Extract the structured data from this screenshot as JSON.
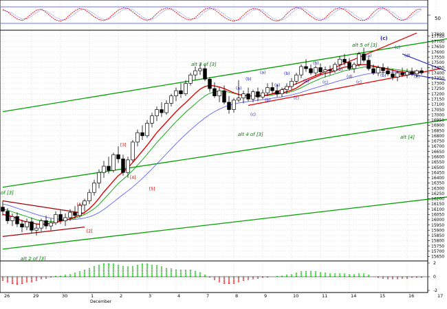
{
  "colors": {
    "up_candle": "#ffffff",
    "down_candle": "#000000",
    "channel_green": "#00a000",
    "trend_red": "#e00000",
    "wedge_red": "#a00000",
    "ma_short": "#e00000",
    "ma_mid": "#00a000",
    "ma_long": "#6060ff",
    "annotation_green": "#008000",
    "wave_blue": "#1a1ab0",
    "wave_red": "#d00000",
    "oscillator_red": "#d00000",
    "oscillator_blue": "#4040ff",
    "hist_green": "#00b000",
    "hist_red": "#e00000",
    "grid": "#c8c8c8"
  },
  "annotations": {
    "alt3": "alt 3 of [3]",
    "alt4": "alt 4 of [3]",
    "alt5": "alt 5 of [3]",
    "alt2": "alt 2 of [3]",
    "altbr4": "alt [4]",
    "of3": "of [3]",
    "wc_top": "(c)"
  },
  "oscillator": {
    "label": "50"
  },
  "macd": {
    "tick_labels": [
      "2",
      "0",
      "-2"
    ]
  },
  "chart_data": {
    "type": "candlestick",
    "title": "",
    "y_ticks": [
      17750,
      17700,
      17650,
      17600,
      17550,
      17500,
      17450,
      17400,
      17350,
      17300,
      17250,
      17200,
      17150,
      17100,
      17050,
      17000,
      16950,
      16900,
      16850,
      16800,
      16750,
      16700,
      16650,
      16600,
      16550,
      16500,
      16450,
      16400,
      16350,
      16300,
      16250,
      16200,
      16150,
      16100,
      16050,
      16000,
      15950,
      15900,
      15850,
      15800,
      15750,
      15700,
      15650
    ],
    "y_top_label": "17800",
    "ylim": [
      15620,
      17800
    ],
    "x_labels": [
      {
        "label": "26",
        "x": 0
      },
      {
        "label": "29",
        "x": 6
      },
      {
        "label": "30",
        "x": 12
      },
      {
        "label": "1",
        "x": 18
      },
      {
        "label": "December",
        "x": 18
      },
      {
        "label": "2",
        "x": 24
      },
      {
        "label": "3",
        "x": 30
      },
      {
        "label": "4",
        "x": 36
      },
      {
        "label": "7",
        "x": 42
      },
      {
        "label": "8",
        "x": 48
      },
      {
        "label": "9",
        "x": 54
      },
      {
        "label": "10",
        "x": 60
      },
      {
        "label": "11",
        "x": 66
      },
      {
        "label": "14",
        "x": 72
      },
      {
        "label": "15",
        "x": 78
      },
      {
        "label": "16",
        "x": 84
      },
      {
        "label": "17",
        "x": 90
      }
    ],
    "candles": [
      [
        16120,
        16180,
        16040,
        16080
      ],
      [
        16080,
        16110,
        15960,
        15990
      ],
      [
        15990,
        16060,
        15940,
        16030
      ],
      [
        16030,
        16070,
        15930,
        15960
      ],
      [
        15960,
        16000,
        15880,
        15930
      ],
      [
        15930,
        16010,
        15900,
        15980
      ],
      [
        15980,
        16020,
        15870,
        15900
      ],
      [
        15900,
        15960,
        15850,
        15920
      ],
      [
        15920,
        16010,
        15890,
        15990
      ],
      [
        15990,
        16040,
        15910,
        15940
      ],
      [
        15940,
        16010,
        15900,
        15970
      ],
      [
        15970,
        16080,
        15950,
        16050
      ],
      [
        16050,
        16090,
        15960,
        15990
      ],
      [
        15990,
        16060,
        15940,
        16020
      ],
      [
        16020,
        16100,
        15990,
        16070
      ],
      [
        16070,
        16130,
        16010,
        16040
      ],
      [
        16040,
        16160,
        16020,
        16140
      ],
      [
        16140,
        16200,
        16080,
        16180
      ],
      [
        16180,
        16290,
        16150,
        16260
      ],
      [
        16260,
        16380,
        16230,
        16350
      ],
      [
        16350,
        16480,
        16300,
        16450
      ],
      [
        16450,
        16560,
        16400,
        16510
      ],
      [
        16510,
        16600,
        16440,
        16470
      ],
      [
        16470,
        16640,
        16450,
        16620
      ],
      [
        16620,
        16700,
        16540,
        16580
      ],
      [
        16580,
        16620,
        16420,
        16450
      ],
      [
        16450,
        16600,
        16400,
        16570
      ],
      [
        16570,
        16760,
        16550,
        16740
      ],
      [
        16740,
        16860,
        16700,
        16830
      ],
      [
        16830,
        16900,
        16760,
        16800
      ],
      [
        16800,
        16950,
        16780,
        16920
      ],
      [
        16920,
        17020,
        16880,
        16990
      ],
      [
        16990,
        17080,
        16940,
        17050
      ],
      [
        17050,
        17120,
        16980,
        17020
      ],
      [
        17020,
        17140,
        17000,
        17110
      ],
      [
        17110,
        17200,
        17080,
        17180
      ],
      [
        17180,
        17260,
        17130,
        17230
      ],
      [
        17230,
        17300,
        17160,
        17200
      ],
      [
        17200,
        17330,
        17180,
        17300
      ],
      [
        17300,
        17400,
        17280,
        17380
      ],
      [
        17380,
        17460,
        17330,
        17420
      ],
      [
        17420,
        17490,
        17380,
        17440
      ],
      [
        17440,
        17480,
        17320,
        17340
      ],
      [
        17340,
        17360,
        17220,
        17250
      ],
      [
        17250,
        17310,
        17160,
        17180
      ],
      [
        17180,
        17260,
        17120,
        17230
      ],
      [
        17230,
        17280,
        17100,
        17120
      ],
      [
        17120,
        17180,
        17010,
        17050
      ],
      [
        17050,
        17160,
        17020,
        17140
      ],
      [
        17140,
        17330,
        17120,
        17160
      ],
      [
        17160,
        17230,
        17110,
        17200
      ],
      [
        17200,
        17260,
        17130,
        17150
      ],
      [
        17150,
        17240,
        17120,
        17220
      ],
      [
        17220,
        17260,
        17130,
        17170
      ],
      [
        17170,
        17240,
        17150,
        17210
      ],
      [
        17210,
        17300,
        17180,
        17260
      ],
      [
        17260,
        17310,
        17200,
        17230
      ],
      [
        17230,
        17290,
        17170,
        17200
      ],
      [
        17200,
        17260,
        17170,
        17240
      ],
      [
        17240,
        17300,
        17200,
        17270
      ],
      [
        17270,
        17350,
        17240,
        17320
      ],
      [
        17320,
        17400,
        17290,
        17380
      ],
      [
        17380,
        17480,
        17350,
        17460
      ],
      [
        17460,
        17530,
        17410,
        17440
      ],
      [
        17440,
        17480,
        17380,
        17400
      ],
      [
        17400,
        17470,
        17370,
        17450
      ],
      [
        17450,
        17490,
        17380,
        17410
      ],
      [
        17410,
        17460,
        17360,
        17430
      ],
      [
        17430,
        17470,
        17380,
        17420
      ],
      [
        17420,
        17500,
        17400,
        17480
      ],
      [
        17480,
        17560,
        17450,
        17530
      ],
      [
        17530,
        17580,
        17470,
        17500
      ],
      [
        17500,
        17540,
        17420,
        17440
      ],
      [
        17440,
        17500,
        17400,
        17480
      ],
      [
        17480,
        17600,
        17460,
        17580
      ],
      [
        17580,
        17640,
        17500,
        17520
      ],
      [
        17520,
        17550,
        17420,
        17440
      ],
      [
        17440,
        17480,
        17380,
        17400
      ],
      [
        17400,
        17470,
        17370,
        17450
      ],
      [
        17450,
        17490,
        17390,
        17420
      ],
      [
        17420,
        17460,
        17370,
        17390
      ],
      [
        17390,
        17440,
        17330,
        17360
      ],
      [
        17360,
        17420,
        17320,
        17400
      ],
      [
        17400,
        17450,
        17360,
        17380
      ],
      [
        17380,
        17440,
        17350,
        17410
      ],
      [
        17410,
        17450,
        17370,
        17390
      ],
      [
        17390,
        17430,
        17360,
        17420
      ],
      [
        17420,
        17450,
        17380,
        17400
      ]
    ],
    "ma_short": [
      16050,
      16040,
      16030,
      16010,
      15990,
      15980,
      15970,
      15960,
      15955,
      15960,
      15965,
      15975,
      15985,
      15995,
      16010,
      16025,
      16045,
      16070,
      16105,
      16150,
      16205,
      16265,
      16315,
      16370,
      16420,
      16455,
      16495,
      16545,
      16600,
      16655,
      16710,
      16770,
      16830,
      16880,
      16930,
      16980,
      17030,
      17075,
      17115,
      17160,
      17205,
      17245,
      17270,
      17280,
      17275,
      17265,
      17250,
      17230,
      17210,
      17195,
      17185,
      17180,
      17180,
      17180,
      17185,
      17190,
      17200,
      17205,
      17210,
      17220,
      17235,
      17255,
      17285,
      17315,
      17340,
      17360,
      17380,
      17395,
      17405,
      17420,
      17440,
      17455,
      17460,
      17465,
      17475,
      17480,
      17475,
      17465,
      17455,
      17445,
      17435,
      17425,
      17415,
      17410,
      17405,
      17405,
      17405,
      17405
    ],
    "ma_mid": [
      16100,
      16090,
      16075,
      16060,
      16045,
      16030,
      16015,
      16000,
      15990,
      15985,
      15982,
      15985,
      15990,
      15995,
      16005,
      16015,
      16030,
      16050,
      16075,
      16105,
      16145,
      16195,
      16245,
      16295,
      16345,
      16385,
      16425,
      16470,
      16520,
      16570,
      16625,
      16680,
      16735,
      16785,
      16835,
      16885,
      16935,
      16980,
      17025,
      17065,
      17105,
      17145,
      17180,
      17205,
      17220,
      17225,
      17225,
      17215,
      17205,
      17195,
      17185,
      17180,
      17178,
      17178,
      17180,
      17183,
      17190,
      17196,
      17202,
      17210,
      17222,
      17238,
      17258,
      17282,
      17305,
      17325,
      17345,
      17362,
      17376,
      17390,
      17405,
      17420,
      17430,
      17438,
      17446,
      17455,
      17458,
      17456,
      17452,
      17448,
      17442,
      17436,
      17430,
      17425,
      17420,
      17418,
      17416,
      17414
    ],
    "ma_long": [
      16150,
      16140,
      16125,
      16110,
      16095,
      16080,
      16065,
      16050,
      16035,
      16025,
      16015,
      16008,
      16003,
      16000,
      16000,
      16003,
      16008,
      16016,
      16028,
      16045,
      16068,
      16098,
      16132,
      16168,
      16205,
      16240,
      16275,
      16312,
      16352,
      16394,
      16438,
      16484,
      16532,
      16580,
      16628,
      16676,
      16724,
      16770,
      16814,
      16856,
      16896,
      16934,
      16970,
      17002,
      17030,
      17054,
      17074,
      17090,
      17102,
      17112,
      17120,
      17127,
      17133,
      17139,
      17145,
      17151,
      17158,
      17165,
      17172,
      17180,
      17190,
      17201,
      17214,
      17229,
      17244,
      17258,
      17272,
      17286,
      17299,
      17312,
      17325,
      17338,
      17350,
      17361,
      17372,
      17383,
      17391,
      17397,
      17401,
      17404,
      17406,
      17407,
      17407,
      17406,
      17405,
      17404,
      17403,
      17402
    ],
    "oscillator_red": [
      70,
      62,
      48,
      36,
      30,
      40,
      55,
      68,
      72,
      60,
      45,
      32,
      28,
      35,
      52,
      66,
      74,
      70,
      58,
      44,
      34,
      30,
      38,
      54,
      68,
      76,
      74,
      62,
      48,
      36,
      30,
      38,
      56,
      70,
      76,
      72,
      60,
      46,
      36,
      32,
      40,
      58,
      72,
      76,
      70,
      56,
      42,
      32,
      28,
      34,
      50,
      66,
      74,
      72,
      60,
      44,
      32,
      28,
      36,
      54,
      70,
      78,
      74,
      60,
      46,
      34,
      30,
      40,
      58,
      72,
      76,
      70,
      56,
      42,
      32,
      30,
      40,
      60,
      74,
      76,
      66,
      50,
      36,
      30,
      38,
      56,
      70,
      72
    ],
    "oscillator_blue": [
      66,
      64,
      56,
      44,
      36,
      36,
      46,
      60,
      68,
      66,
      54,
      42,
      34,
      32,
      42,
      56,
      68,
      72,
      66,
      54,
      42,
      34,
      34,
      44,
      58,
      70,
      74,
      70,
      58,
      44,
      34,
      34,
      44,
      60,
      70,
      74,
      68,
      56,
      44,
      36,
      36,
      46,
      62,
      72,
      74,
      66,
      52,
      40,
      32,
      30,
      40,
      56,
      68,
      72,
      68,
      54,
      40,
      32,
      32,
      42,
      58,
      72,
      76,
      70,
      56,
      42,
      34,
      34,
      46,
      62,
      72,
      74,
      66,
      52,
      40,
      32,
      34,
      46,
      64,
      74,
      72,
      60,
      46,
      34,
      34,
      44,
      60,
      68
    ],
    "macd_hist": [
      -0.6,
      -0.9,
      -1.1,
      -1.2,
      -1.1,
      -0.9,
      -0.8,
      -0.6,
      -0.4,
      -0.3,
      -0.1,
      0.1,
      0.2,
      0.3,
      0.4,
      0.6,
      0.8,
      1.0,
      1.3,
      1.6,
      1.8,
      2.0,
      2.0,
      1.9,
      1.8,
      1.6,
      1.5,
      1.6,
      1.8,
      1.9,
      1.9,
      1.8,
      1.7,
      1.5,
      1.3,
      1.2,
      1.1,
      1.0,
      1.0,
      1.0,
      0.9,
      0.7,
      0.3,
      -0.1,
      -0.5,
      -0.8,
      -1.0,
      -1.1,
      -1.0,
      -0.8,
      -0.6,
      -0.5,
      -0.4,
      -0.3,
      -0.2,
      -0.1,
      0.0,
      0.1,
      0.2,
      0.3,
      0.4,
      0.6,
      0.8,
      0.9,
      0.9,
      0.8,
      0.7,
      0.6,
      0.5,
      0.5,
      0.5,
      0.5,
      0.4,
      0.4,
      0.5,
      0.5,
      0.3,
      0.0,
      -0.2,
      -0.3,
      -0.4,
      -0.4,
      -0.4,
      -0.3,
      -0.3,
      -0.2,
      -0.2,
      -0.2
    ],
    "lines": [
      {
        "name": "",
        "color": "#00a000",
        "from": [
          0,
          17030
        ],
        "to": [
          93,
          17730
        ]
      },
      {
        "name": "",
        "color": "#00a000",
        "from": [
          0,
          16310
        ],
        "to": [
          93,
          16960
        ]
      },
      {
        "name": "",
        "color": "#00a000",
        "from": [
          0,
          15720
        ],
        "to": [
          93,
          16220
        ]
      },
      {
        "name": "",
        "color": "#e00000",
        "from": [
          56,
          17200
        ],
        "to": [
          86,
          17780
        ]
      },
      {
        "name": "",
        "color": "#e00000",
        "from": [
          51,
          17090
        ],
        "to": [
          91,
          17440
        ]
      },
      {
        "name": "",
        "color": "#a00000",
        "from": [
          0,
          16180
        ],
        "to": [
          17,
          16060
        ]
      },
      {
        "name": "",
        "color": "#a00000",
        "from": [
          0,
          15840
        ],
        "to": [
          17,
          15930
        ]
      },
      {
        "name": "",
        "color": "#4040c0",
        "from": [
          83,
          17580
        ],
        "to": [
          92,
          17420
        ]
      },
      {
        "name": "",
        "color": "#4040c0",
        "from": [
          83,
          17400
        ],
        "to": [
          92,
          17330
        ]
      }
    ],
    "wave_labels": [
      {
        "text": "(a)",
        "x": 49,
        "y": 17240,
        "color": "#1a1ab0"
      },
      {
        "text": "(b)",
        "x": 51,
        "y": 17330,
        "color": "#1a1ab0"
      },
      {
        "text": "(c)",
        "x": 52,
        "y": 16990,
        "color": "#1a1ab0"
      },
      {
        "text": "(a)",
        "x": 54,
        "y": 17390,
        "color": "#1a1ab0"
      },
      {
        "text": "(b)",
        "x": 55,
        "y": 17130,
        "color": "#1a1ab0"
      },
      {
        "text": "(a)",
        "x": 57,
        "y": 17270,
        "color": "#1a1ab0"
      },
      {
        "text": "(b)",
        "x": 59,
        "y": 17380,
        "color": "#1a1ab0"
      },
      {
        "text": "(c)",
        "x": 61,
        "y": 17150,
        "color": "#1a1ab0"
      },
      {
        "text": "(a)",
        "x": 63,
        "y": 17310,
        "color": "#1a1ab0"
      },
      {
        "text": "(b)",
        "x": 65,
        "y": 17480,
        "color": "#1a1ab0"
      },
      {
        "text": "(c)",
        "x": 67,
        "y": 17300,
        "color": "#1a1ab0"
      },
      {
        "text": "(b)",
        "x": 70,
        "y": 17420,
        "color": "#1a1ab0"
      },
      {
        "text": "(d)",
        "x": 72,
        "y": 17350,
        "color": "#1a1ab0"
      },
      {
        "text": "(c)",
        "x": 74,
        "y": 17300,
        "color": "#1a1ab0"
      },
      {
        "text": "(a)",
        "x": 76,
        "y": 17550,
        "color": "#1a1ab0"
      },
      {
        "text": "(b)",
        "x": 79,
        "y": 17360,
        "color": "#1a1ab0"
      },
      {
        "text": "(c)",
        "x": 82,
        "y": 17630,
        "color": "#1a1ab0"
      },
      {
        "text": "(d)",
        "x": 84,
        "y": 17550,
        "color": "#1a1ab0"
      },
      {
        "text": "(e)",
        "x": 86,
        "y": 17350,
        "color": "#1a1ab0"
      },
      {
        "text": "[1]",
        "x": 16,
        "y": 16130,
        "color": "#d00000"
      },
      {
        "text": "[2]",
        "x": 18,
        "y": 15880,
        "color": "#d00000"
      },
      {
        "text": "[3]",
        "x": 25,
        "y": 16700,
        "color": "#d00000"
      },
      {
        "text": "[4]",
        "x": 27,
        "y": 16390,
        "color": "#d00000"
      },
      {
        "text": "[5]",
        "x": 31,
        "y": 16280,
        "color": "#d00000"
      }
    ]
  }
}
